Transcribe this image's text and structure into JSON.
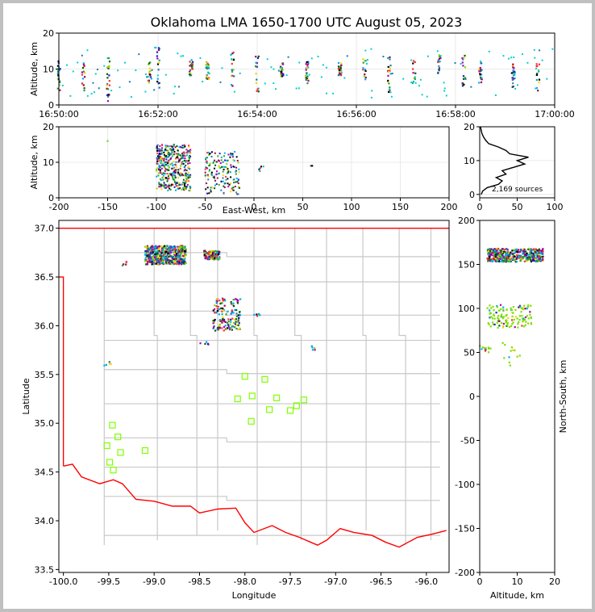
{
  "chart_data": [
    {
      "panel": "time-altitude",
      "type": "scatter",
      "title": "Oklahoma LMA 1650-1700 UTC August 05, 2023",
      "ylabel": "Altitude, km",
      "ylim": [
        0,
        20
      ],
      "yticks": [
        "0",
        "10",
        "20"
      ],
      "xlim": [
        "16:50:00",
        "17:00:00"
      ],
      "xticks": [
        "16:50:00",
        "16:52:00",
        "16:54:00",
        "16:56:00",
        "16:58:00",
        "17:00:00"
      ],
      "grid": true,
      "bursts": [
        {
          "t": "16:50:00",
          "alt": [
            3,
            13
          ]
        },
        {
          "t": "16:50:30",
          "alt": [
            4,
            12
          ]
        },
        {
          "t": "16:51:00",
          "alt": [
            1,
            15
          ]
        },
        {
          "t": "16:51:50",
          "alt": [
            6,
            12
          ]
        },
        {
          "t": "16:52:00",
          "alt": [
            2,
            16
          ]
        },
        {
          "t": "16:52:40",
          "alt": [
            8,
            13
          ]
        },
        {
          "t": "16:53:00",
          "alt": [
            7,
            12
          ]
        },
        {
          "t": "16:53:30",
          "alt": [
            5,
            15
          ]
        },
        {
          "t": "16:54:00",
          "alt": [
            1,
            14
          ]
        },
        {
          "t": "16:54:30",
          "alt": [
            8,
            12
          ]
        },
        {
          "t": "16:55:00",
          "alt": [
            6,
            12
          ]
        },
        {
          "t": "16:55:40",
          "alt": [
            8,
            12
          ]
        },
        {
          "t": "16:56:10",
          "alt": [
            7,
            13
          ]
        },
        {
          "t": "16:56:40",
          "alt": [
            3,
            14
          ]
        },
        {
          "t": "16:57:10",
          "alt": [
            6,
            13
          ]
        },
        {
          "t": "16:57:40",
          "alt": [
            8,
            14
          ]
        },
        {
          "t": "16:58:10",
          "alt": [
            5,
            14
          ]
        },
        {
          "t": "16:58:30",
          "alt": [
            6,
            12
          ]
        },
        {
          "t": "16:59:10",
          "alt": [
            5,
            12
          ]
        },
        {
          "t": "16:59:40",
          "alt": [
            4,
            12
          ]
        }
      ]
    },
    {
      "panel": "east-west-altitude",
      "type": "scatter",
      "xlabel": "East-West, km",
      "ylabel": "Altitude, km",
      "xlim": [
        -200,
        200
      ],
      "ylim": [
        0,
        20
      ],
      "xticks": [
        "-200",
        "-150",
        "-100",
        "-50",
        "0",
        "50",
        "100",
        "150",
        "200"
      ],
      "yticks": [
        "0",
        "10",
        "20"
      ],
      "grid": true,
      "clusters": [
        {
          "x": [
            -100,
            -65
          ],
          "alt": [
            2,
            15
          ],
          "density": "high"
        },
        {
          "x": [
            -50,
            -15
          ],
          "alt": [
            1,
            13
          ],
          "density": "medium"
        },
        {
          "x": [
            -150,
            -150
          ],
          "alt": [
            16,
            16
          ],
          "density": "low"
        },
        {
          "x": [
            5,
            10
          ],
          "alt": [
            7,
            10
          ],
          "density": "low"
        },
        {
          "x": [
            58,
            60
          ],
          "alt": [
            9,
            9
          ],
          "density": "low"
        }
      ]
    },
    {
      "panel": "altitude-histogram",
      "type": "line",
      "annotation": "2,169 sources",
      "xlim": [
        0,
        100
      ],
      "ylim": [
        0,
        20
      ],
      "xticks": [
        "0",
        "50",
        "100"
      ],
      "yticks": [
        "0",
        "10",
        "20"
      ],
      "grid": true,
      "profile": [
        {
          "alt": 0,
          "count": 2
        },
        {
          "alt": 1,
          "count": 4
        },
        {
          "alt": 2,
          "count": 10
        },
        {
          "alt": 3,
          "count": 25
        },
        {
          "alt": 4,
          "count": 30
        },
        {
          "alt": 5,
          "count": 22
        },
        {
          "alt": 6,
          "count": 35
        },
        {
          "alt": 7,
          "count": 30
        },
        {
          "alt": 8,
          "count": 45
        },
        {
          "alt": 9,
          "count": 60
        },
        {
          "alt": 10,
          "count": 50
        },
        {
          "alt": 11,
          "count": 65
        },
        {
          "alt": 12,
          "count": 40
        },
        {
          "alt": 13,
          "count": 35
        },
        {
          "alt": 14,
          "count": 25
        },
        {
          "alt": 15,
          "count": 12
        },
        {
          "alt": 16,
          "count": 8
        },
        {
          "alt": 17,
          "count": 5
        },
        {
          "alt": 18,
          "count": 3
        },
        {
          "alt": 19,
          "count": 2
        },
        {
          "alt": 20,
          "count": 1
        }
      ]
    },
    {
      "panel": "plan-view-map",
      "type": "scatter",
      "xlabel": "Longitude",
      "ylabel": "Latitude",
      "xlim": [
        -100.05,
        -95.75
      ],
      "ylim": [
        33.47,
        37.08
      ],
      "xticks": [
        "-100.0",
        "-99.5",
        "-99.0",
        "-98.5",
        "-98.0",
        "-97.5",
        "-97.0",
        "-96.5",
        "-96.0"
      ],
      "yticks": [
        "33.5",
        "34.0",
        "34.5",
        "35.0",
        "35.5",
        "36.0",
        "36.5",
        "37.0"
      ],
      "clusters": [
        {
          "lon": [
            -99.1,
            -98.65
          ],
          "lat": [
            36.63,
            36.82
          ],
          "density": "high"
        },
        {
          "lon": [
            -98.45,
            -98.28
          ],
          "lat": [
            36.68,
            36.77
          ],
          "density": "medium"
        },
        {
          "lon": [
            -98.35,
            -98.05
          ],
          "lat": [
            35.95,
            36.28
          ],
          "density": "medium"
        },
        {
          "lon": [
            -98.5,
            -98.3
          ],
          "lat": [
            35.78,
            35.84
          ],
          "density": "low"
        },
        {
          "lon": [
            -99.55,
            -99.45
          ],
          "lat": [
            35.58,
            35.63
          ],
          "density": "low"
        },
        {
          "lon": [
            -99.35,
            -99.3
          ],
          "lat": [
            36.6,
            36.66
          ],
          "density": "low"
        },
        {
          "lon": [
            -97.9,
            -97.8
          ],
          "lat": [
            36.1,
            36.13
          ],
          "density": "low"
        },
        {
          "lon": [
            -97.27,
            -97.22
          ],
          "lat": [
            35.75,
            35.8
          ],
          "density": "low"
        }
      ],
      "stations": [
        {
          "lon": -99.46,
          "lat": 34.98
        },
        {
          "lon": -99.4,
          "lat": 34.86
        },
        {
          "lon": -99.37,
          "lat": 34.7
        },
        {
          "lon": -99.52,
          "lat": 34.77
        },
        {
          "lon": -99.49,
          "lat": 34.6
        },
        {
          "lon": -99.45,
          "lat": 34.52
        },
        {
          "lon": -99.1,
          "lat": 34.72
        },
        {
          "lon": -98.0,
          "lat": 35.48
        },
        {
          "lon": -97.78,
          "lat": 35.45
        },
        {
          "lon": -98.08,
          "lat": 35.25
        },
        {
          "lon": -97.92,
          "lat": 35.28
        },
        {
          "lon": -97.65,
          "lat": 35.26
        },
        {
          "lon": -97.35,
          "lat": 35.24
        },
        {
          "lon": -97.43,
          "lat": 35.18
        },
        {
          "lon": -97.5,
          "lat": 35.13
        },
        {
          "lon": -97.73,
          "lat": 35.14
        },
        {
          "lon": -97.93,
          "lat": 35.02
        }
      ]
    },
    {
      "panel": "altitude-north-south",
      "type": "scatter",
      "xlabel": "Altitude, km",
      "ylabel": "North-South, km",
      "xlim": [
        0,
        20
      ],
      "ylim": [
        -200,
        200
      ],
      "xticks": [
        "0",
        "10",
        "20"
      ],
      "yticks": [
        "-200",
        "-150",
        "-100",
        "-50",
        "0",
        "50",
        "100",
        "150",
        "200"
      ],
      "clusters": [
        {
          "alt": [
            2,
            17
          ],
          "ns": [
            153,
            168
          ],
          "density": "high"
        },
        {
          "alt": [
            2,
            14
          ],
          "ns": [
            78,
            104
          ],
          "density": "medium"
        },
        {
          "alt": [
            6,
            11
          ],
          "ns": [
            35,
            62
          ],
          "density": "low"
        },
        {
          "alt": [
            0,
            3
          ],
          "ns": [
            50,
            58
          ],
          "density": "low"
        }
      ]
    }
  ]
}
